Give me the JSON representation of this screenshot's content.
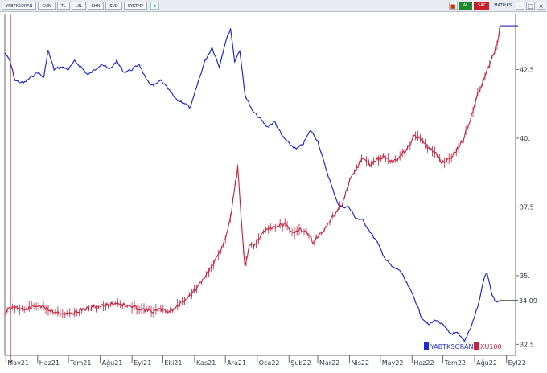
{
  "toolbar": {
    "symbol": "YABTKSORAN",
    "period": "GUN",
    "currency": "TL",
    "scale": "LIN",
    "mode1": "KHN",
    "mode2": "SVD",
    "mode3": "SYKTMP",
    "twitter_icon": "twitter-icon",
    "buy_label": "AL",
    "sell_label": "SAT",
    "matrix_label": "MATRiKS",
    "controls": [
      "minimize-icon",
      "restore-icon",
      "close-icon"
    ]
  },
  "colors": {
    "series1": "#1f2bd8",
    "series2": "#c8203c",
    "axis": "#6a6a6a",
    "grid": "#cccccc",
    "cursor": "#cc0000"
  },
  "chart_data": {
    "type": "line",
    "title": "",
    "xlabel": "",
    "ylabel": "",
    "ylim": [
      32.1,
      44.5
    ],
    "x_ticks": [
      "Mav21",
      "Haz21",
      "Tem21",
      "Ağu21",
      "Eyl21",
      "Eki21",
      "Kas21",
      "Ara21",
      "Oca22",
      "Şub22",
      "Mar22",
      "Nis22",
      "May22",
      "Haz22",
      "Tem22",
      "Ağu22",
      "Eyl22"
    ],
    "y_ticks": [
      32.5,
      35,
      37.5,
      40,
      42.5
    ],
    "y_tick_labels": [
      "32.5",
      "35.",
      "37.5",
      "40.",
      "42.5"
    ],
    "current_value_label": "34.09",
    "legend": [
      "YABTKSORAN",
      "XU100"
    ],
    "grid": false,
    "legend_position": "bottom-right",
    "series": [
      {
        "name": "YABTKSORAN",
        "axis": "right",
        "points": [
          [
            "2021-04-30",
            43.1
          ],
          [
            "2021-05-05",
            42.8
          ],
          [
            "2021-05-10",
            42.1
          ],
          [
            "2021-05-18",
            42.0
          ],
          [
            "2021-05-25",
            42.2
          ],
          [
            "2021-06-01",
            42.4
          ],
          [
            "2021-06-07",
            42.2
          ],
          [
            "2021-06-11",
            43.2
          ],
          [
            "2021-06-17",
            42.5
          ],
          [
            "2021-06-24",
            42.6
          ],
          [
            "2021-07-01",
            42.5
          ],
          [
            "2021-07-07",
            42.8
          ],
          [
            "2021-07-13",
            42.6
          ],
          [
            "2021-07-20",
            42.3
          ],
          [
            "2021-07-27",
            42.5
          ],
          [
            "2021-08-02",
            42.7
          ],
          [
            "2021-08-10",
            42.5
          ],
          [
            "2021-08-17",
            42.8
          ],
          [
            "2021-08-24",
            42.4
          ],
          [
            "2021-09-01",
            42.5
          ],
          [
            "2021-09-08",
            42.7
          ],
          [
            "2021-09-15",
            42.1
          ],
          [
            "2021-09-22",
            41.9
          ],
          [
            "2021-09-29",
            42.1
          ],
          [
            "2021-10-06",
            41.8
          ],
          [
            "2021-10-14",
            41.4
          ],
          [
            "2021-10-21",
            41.3
          ],
          [
            "2021-10-28",
            41.1
          ],
          [
            "2021-11-04",
            42.0
          ],
          [
            "2021-11-11",
            42.8
          ],
          [
            "2021-11-18",
            43.3
          ],
          [
            "2021-11-25",
            42.6
          ],
          [
            "2021-12-01",
            43.5
          ],
          [
            "2021-12-06",
            44.0
          ],
          [
            "2021-12-10",
            42.8
          ],
          [
            "2021-12-15",
            43.2
          ],
          [
            "2021-12-20",
            41.6
          ],
          [
            "2021-12-27",
            41.0
          ],
          [
            "2022-01-04",
            40.7
          ],
          [
            "2022-01-11",
            40.4
          ],
          [
            "2022-01-18",
            40.6
          ],
          [
            "2022-01-25",
            40.1
          ],
          [
            "2022-02-01",
            39.8
          ],
          [
            "2022-02-08",
            39.6
          ],
          [
            "2022-02-15",
            39.8
          ],
          [
            "2022-02-22",
            40.3
          ],
          [
            "2022-03-01",
            39.9
          ],
          [
            "2022-03-08",
            39.0
          ],
          [
            "2022-03-15",
            38.2
          ],
          [
            "2022-03-22",
            37.5
          ],
          [
            "2022-03-31",
            37.5
          ],
          [
            "2022-04-07",
            37.1
          ],
          [
            "2022-04-14",
            37.0
          ],
          [
            "2022-04-21",
            36.6
          ],
          [
            "2022-04-28",
            36.2
          ],
          [
            "2022-05-06",
            35.6
          ],
          [
            "2022-05-13",
            35.3
          ],
          [
            "2022-05-20",
            35.2
          ],
          [
            "2022-05-27",
            34.7
          ],
          [
            "2022-06-03",
            34.2
          ],
          [
            "2022-06-10",
            33.5
          ],
          [
            "2022-06-17",
            33.2
          ],
          [
            "2022-06-24",
            33.4
          ],
          [
            "2022-07-01",
            33.2
          ],
          [
            "2022-07-08",
            32.9
          ],
          [
            "2022-07-15",
            32.9
          ],
          [
            "2022-07-22",
            32.6
          ],
          [
            "2022-07-29",
            33.2
          ],
          [
            "2022-08-05",
            34.0
          ],
          [
            "2022-08-10",
            34.9
          ],
          [
            "2022-08-13",
            35.1
          ],
          [
            "2022-08-18",
            34.3
          ],
          [
            "2022-08-22",
            34.0
          ],
          [
            "2022-08-25",
            34.09
          ]
        ]
      },
      {
        "name": "XU100",
        "axis": "hidden",
        "points": [
          [
            "2021-04-30",
            1380
          ],
          [
            "2021-05-05",
            1410
          ],
          [
            "2021-05-12",
            1420
          ],
          [
            "2021-05-19",
            1400
          ],
          [
            "2021-05-26",
            1420
          ],
          [
            "2021-06-02",
            1430
          ],
          [
            "2021-06-09",
            1410
          ],
          [
            "2021-06-16",
            1390
          ],
          [
            "2021-06-23",
            1380
          ],
          [
            "2021-06-30",
            1370
          ],
          [
            "2021-07-07",
            1380
          ],
          [
            "2021-07-14",
            1400
          ],
          [
            "2021-07-21",
            1410
          ],
          [
            "2021-07-28",
            1420
          ],
          [
            "2021-08-04",
            1430
          ],
          [
            "2021-08-11",
            1440
          ],
          [
            "2021-08-18",
            1450
          ],
          [
            "2021-08-25",
            1430
          ],
          [
            "2021-09-01",
            1420
          ],
          [
            "2021-09-08",
            1410
          ],
          [
            "2021-09-15",
            1400
          ],
          [
            "2021-09-22",
            1390
          ],
          [
            "2021-09-29",
            1400
          ],
          [
            "2021-10-06",
            1390
          ],
          [
            "2021-10-13",
            1410
          ],
          [
            "2021-10-20",
            1460
          ],
          [
            "2021-10-27",
            1500
          ],
          [
            "2021-11-03",
            1550
          ],
          [
            "2021-11-10",
            1620
          ],
          [
            "2021-11-17",
            1700
          ],
          [
            "2021-11-24",
            1780
          ],
          [
            "2021-12-01",
            1900
          ],
          [
            "2021-12-07",
            2100
          ],
          [
            "2021-12-13",
            2400
          ],
          [
            "2021-12-16",
            2100
          ],
          [
            "2021-12-20",
            1700
          ],
          [
            "2021-12-24",
            1850
          ],
          [
            "2021-12-31",
            1860
          ],
          [
            "2022-01-07",
            1950
          ],
          [
            "2022-01-14",
            1980
          ],
          [
            "2022-01-21",
            1990
          ],
          [
            "2022-01-28",
            2000
          ],
          [
            "2022-02-04",
            1940
          ],
          [
            "2022-02-11",
            1970
          ],
          [
            "2022-02-18",
            1950
          ],
          [
            "2022-02-24",
            1880
          ],
          [
            "2022-03-02",
            1920
          ],
          [
            "2022-03-10",
            1990
          ],
          [
            "2022-03-18",
            2080
          ],
          [
            "2022-03-25",
            2150
          ],
          [
            "2022-04-01",
            2300
          ],
          [
            "2022-04-08",
            2400
          ],
          [
            "2022-04-14",
            2470
          ],
          [
            "2022-04-21",
            2420
          ],
          [
            "2022-04-28",
            2460
          ],
          [
            "2022-05-05",
            2480
          ],
          [
            "2022-05-12",
            2440
          ],
          [
            "2022-05-19",
            2470
          ],
          [
            "2022-05-26",
            2520
          ],
          [
            "2022-06-03",
            2620
          ],
          [
            "2022-06-09",
            2620
          ],
          [
            "2022-06-16",
            2540
          ],
          [
            "2022-06-23",
            2510
          ],
          [
            "2022-06-30",
            2440
          ],
          [
            "2022-07-07",
            2460
          ],
          [
            "2022-07-14",
            2520
          ],
          [
            "2022-07-21",
            2600
          ],
          [
            "2022-07-28",
            2750
          ],
          [
            "2022-08-04",
            2920
          ],
          [
            "2022-08-11",
            3050
          ],
          [
            "2022-08-18",
            3180
          ],
          [
            "2022-08-24",
            3300
          ],
          [
            "2022-08-26",
            3400
          ]
        ]
      }
    ]
  }
}
